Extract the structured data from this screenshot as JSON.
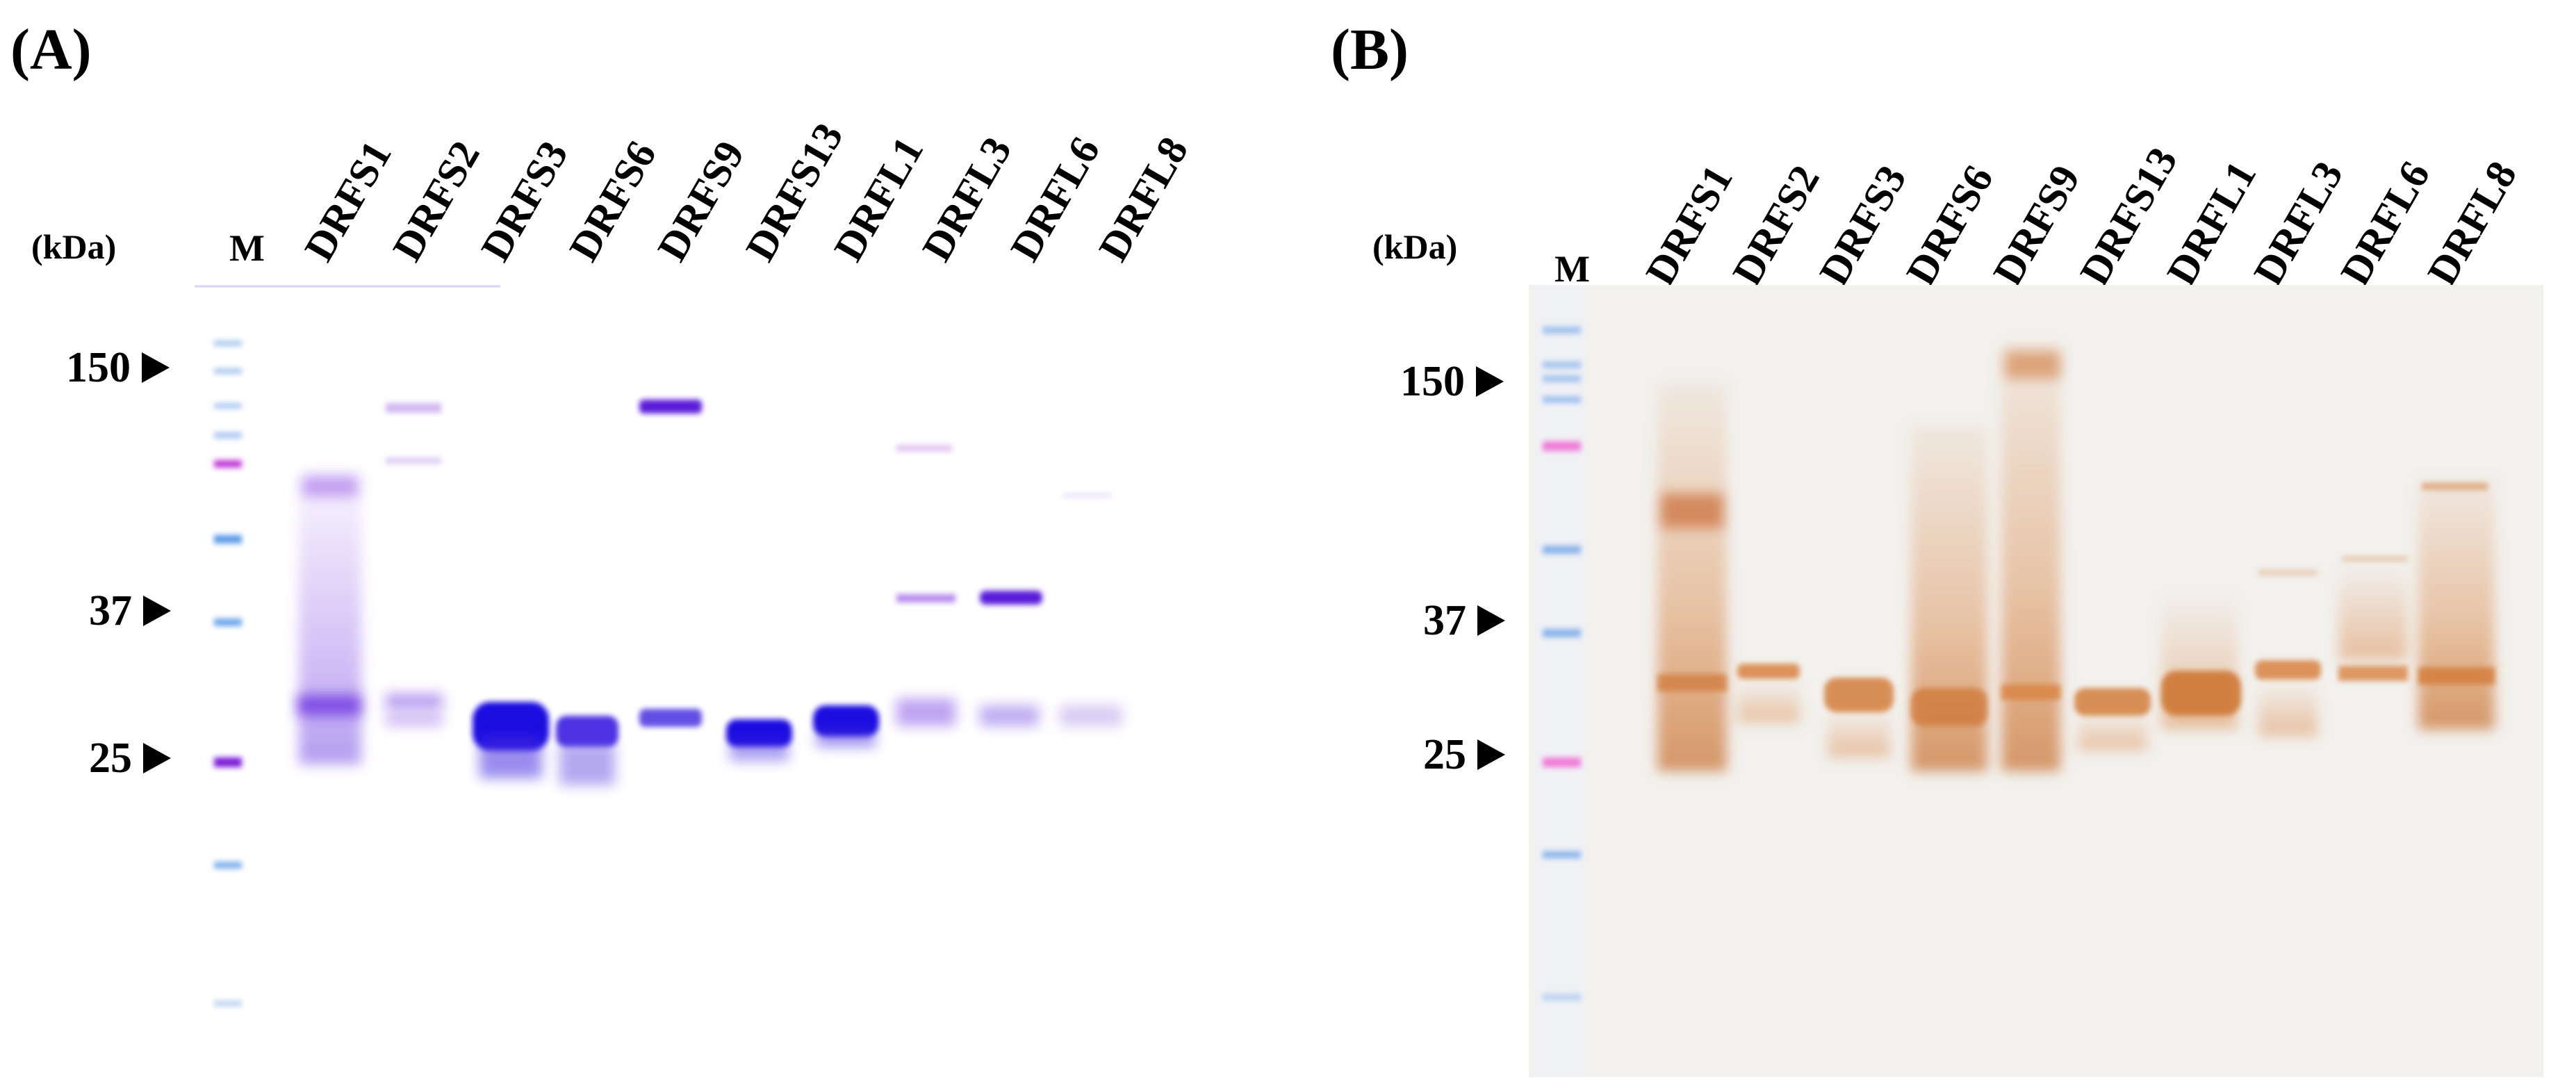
{
  "panel_a": {
    "label": "(A)",
    "unit": "(kDa)",
    "marker_lane": "M",
    "lanes": [
      "DRFS1",
      "DRFS2",
      "DRFS3",
      "DRFS6",
      "DRFS9",
      "DRFS13",
      "DRFL1",
      "DRFL3",
      "DRFL6",
      "DRFL8"
    ],
    "markers": [
      "150",
      "37",
      "25"
    ],
    "stain_color": "#2a0fd6"
  },
  "panel_b": {
    "label": "(B)",
    "unit": "(kDa)",
    "marker_lane": "M",
    "lanes": [
      "DRFS1",
      "DRFS2",
      "DRFS3",
      "DRFS6",
      "DRFS9",
      "DRFS13",
      "DRFL1",
      "DRFL3",
      "DRFL6",
      "DRFL8"
    ],
    "markers": [
      "150",
      "37",
      "25"
    ],
    "stain_color": "#d9823f"
  }
}
